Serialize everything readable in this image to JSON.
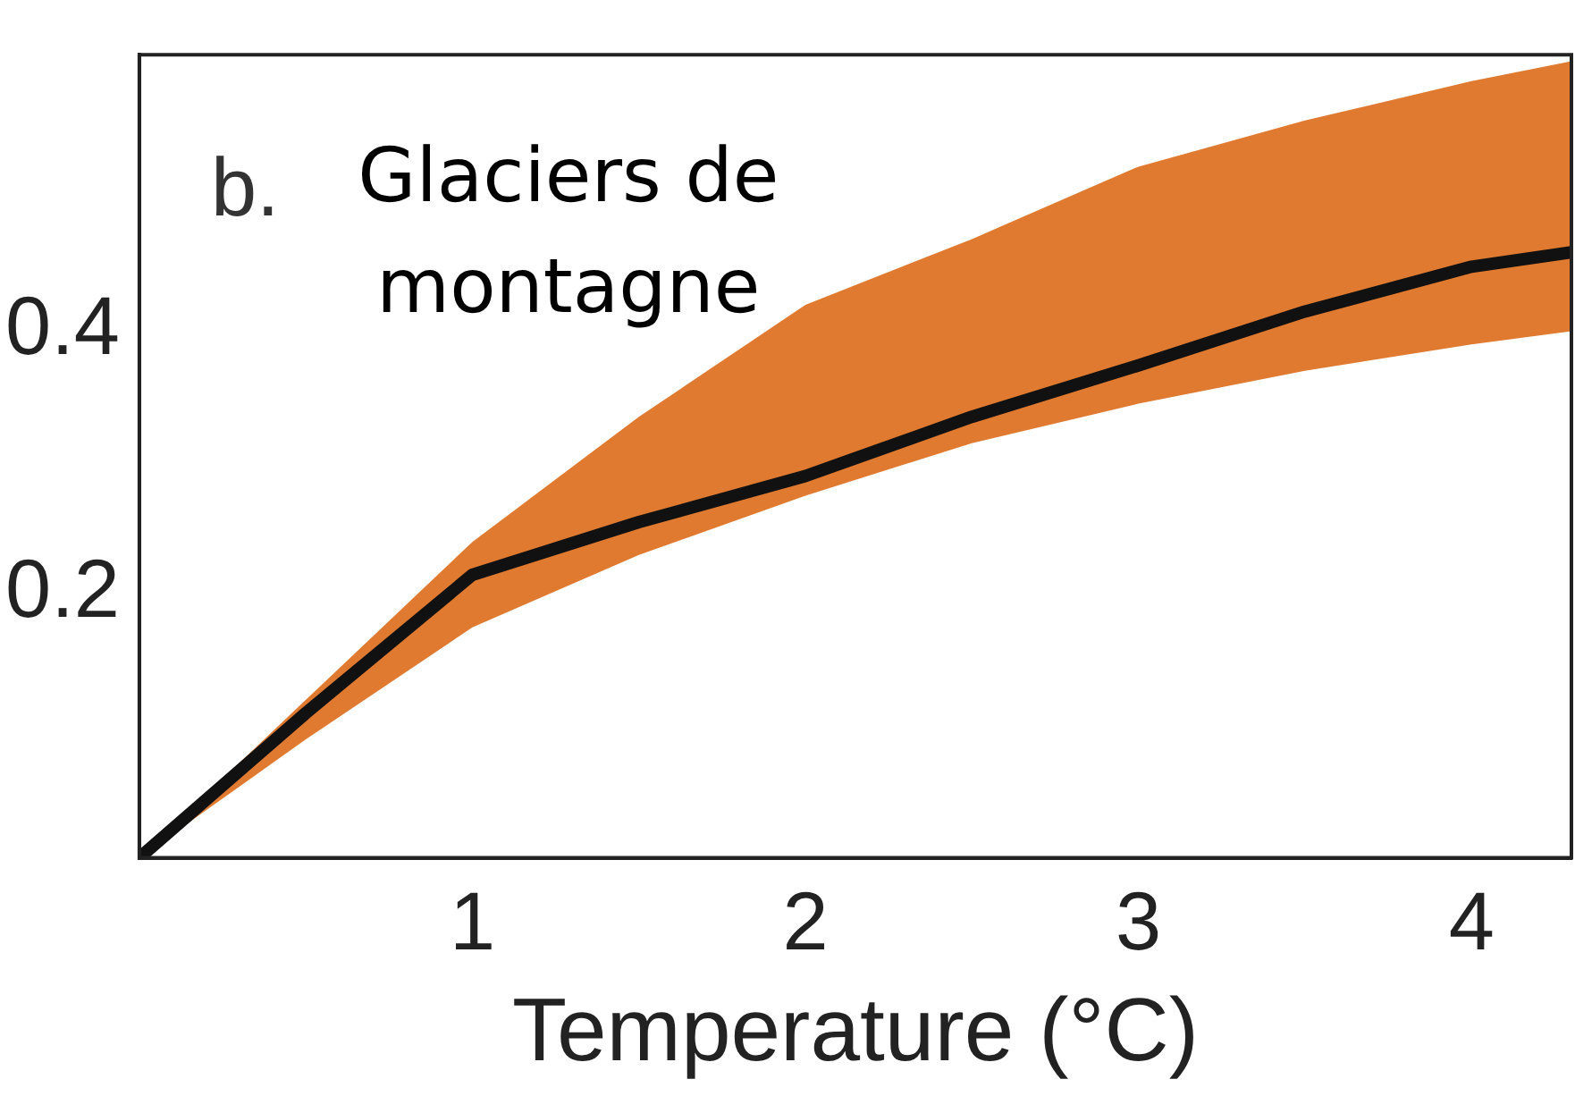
{
  "chart_data": {
    "type": "line",
    "xlabel": "Temperature (°C)",
    "annotations": [
      "b.",
      "Glaciers de montagne"
    ],
    "x": [
      0,
      0.5,
      1,
      1.5,
      2,
      2.5,
      3,
      3.5,
      4,
      4.3
    ],
    "series": [
      {
        "color": "#111111",
        "values": [
          0,
          0.11,
          0.215,
          0.255,
          0.29,
          0.335,
          0.374,
          0.415,
          0.449,
          0.46
        ],
        "lower": [
          0,
          0.09,
          0.175,
          0.23,
          0.275,
          0.315,
          0.345,
          0.37,
          0.39,
          0.4
        ],
        "upper": [
          0,
          0.12,
          0.24,
          0.335,
          0.42,
          0.47,
          0.525,
          0.56,
          0.59,
          0.605
        ]
      }
    ],
    "xlim": [
      0,
      4.3
    ],
    "xticks": [
      1,
      2,
      3,
      4
    ],
    "ylim": [
      0,
      0.61
    ],
    "yticks": [
      0.2,
      0.4
    ],
    "grid": false,
    "legend": false,
    "marker": "none",
    "line_style": "solid"
  }
}
